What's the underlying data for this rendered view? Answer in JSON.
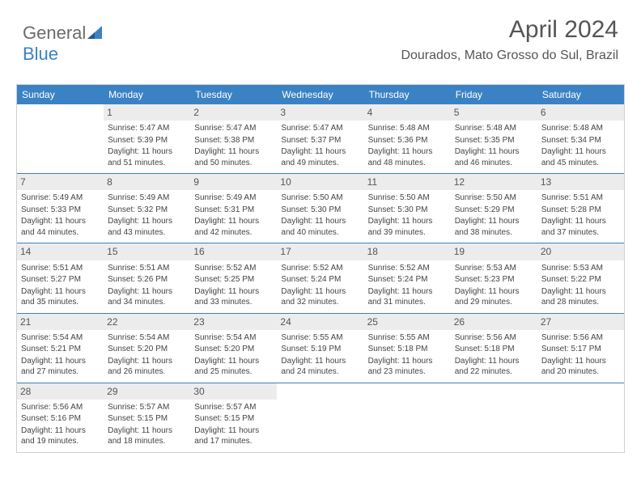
{
  "logo": {
    "text1": "General",
    "text2": "Blue"
  },
  "title": "April 2024",
  "location": "Dourados, Mato Grosso do Sul, Brazil",
  "colors": {
    "header_bg": "#3b82c4",
    "daynum_bg": "#ececec",
    "page_bg": "#ffffff",
    "text": "#444444"
  },
  "day_names": [
    "Sunday",
    "Monday",
    "Tuesday",
    "Wednesday",
    "Thursday",
    "Friday",
    "Saturday"
  ],
  "weeks": [
    [
      {
        "n": "",
        "sr": "",
        "ss": "",
        "dl": ""
      },
      {
        "n": "1",
        "sr": "Sunrise: 5:47 AM",
        "ss": "Sunset: 5:39 PM",
        "dl": "Daylight: 11 hours and 51 minutes."
      },
      {
        "n": "2",
        "sr": "Sunrise: 5:47 AM",
        "ss": "Sunset: 5:38 PM",
        "dl": "Daylight: 11 hours and 50 minutes."
      },
      {
        "n": "3",
        "sr": "Sunrise: 5:47 AM",
        "ss": "Sunset: 5:37 PM",
        "dl": "Daylight: 11 hours and 49 minutes."
      },
      {
        "n": "4",
        "sr": "Sunrise: 5:48 AM",
        "ss": "Sunset: 5:36 PM",
        "dl": "Daylight: 11 hours and 48 minutes."
      },
      {
        "n": "5",
        "sr": "Sunrise: 5:48 AM",
        "ss": "Sunset: 5:35 PM",
        "dl": "Daylight: 11 hours and 46 minutes."
      },
      {
        "n": "6",
        "sr": "Sunrise: 5:48 AM",
        "ss": "Sunset: 5:34 PM",
        "dl": "Daylight: 11 hours and 45 minutes."
      }
    ],
    [
      {
        "n": "7",
        "sr": "Sunrise: 5:49 AM",
        "ss": "Sunset: 5:33 PM",
        "dl": "Daylight: 11 hours and 44 minutes."
      },
      {
        "n": "8",
        "sr": "Sunrise: 5:49 AM",
        "ss": "Sunset: 5:32 PM",
        "dl": "Daylight: 11 hours and 43 minutes."
      },
      {
        "n": "9",
        "sr": "Sunrise: 5:49 AM",
        "ss": "Sunset: 5:31 PM",
        "dl": "Daylight: 11 hours and 42 minutes."
      },
      {
        "n": "10",
        "sr": "Sunrise: 5:50 AM",
        "ss": "Sunset: 5:30 PM",
        "dl": "Daylight: 11 hours and 40 minutes."
      },
      {
        "n": "11",
        "sr": "Sunrise: 5:50 AM",
        "ss": "Sunset: 5:30 PM",
        "dl": "Daylight: 11 hours and 39 minutes."
      },
      {
        "n": "12",
        "sr": "Sunrise: 5:50 AM",
        "ss": "Sunset: 5:29 PM",
        "dl": "Daylight: 11 hours and 38 minutes."
      },
      {
        "n": "13",
        "sr": "Sunrise: 5:51 AM",
        "ss": "Sunset: 5:28 PM",
        "dl": "Daylight: 11 hours and 37 minutes."
      }
    ],
    [
      {
        "n": "14",
        "sr": "Sunrise: 5:51 AM",
        "ss": "Sunset: 5:27 PM",
        "dl": "Daylight: 11 hours and 35 minutes."
      },
      {
        "n": "15",
        "sr": "Sunrise: 5:51 AM",
        "ss": "Sunset: 5:26 PM",
        "dl": "Daylight: 11 hours and 34 minutes."
      },
      {
        "n": "16",
        "sr": "Sunrise: 5:52 AM",
        "ss": "Sunset: 5:25 PM",
        "dl": "Daylight: 11 hours and 33 minutes."
      },
      {
        "n": "17",
        "sr": "Sunrise: 5:52 AM",
        "ss": "Sunset: 5:24 PM",
        "dl": "Daylight: 11 hours and 32 minutes."
      },
      {
        "n": "18",
        "sr": "Sunrise: 5:52 AM",
        "ss": "Sunset: 5:24 PM",
        "dl": "Daylight: 11 hours and 31 minutes."
      },
      {
        "n": "19",
        "sr": "Sunrise: 5:53 AM",
        "ss": "Sunset: 5:23 PM",
        "dl": "Daylight: 11 hours and 29 minutes."
      },
      {
        "n": "20",
        "sr": "Sunrise: 5:53 AM",
        "ss": "Sunset: 5:22 PM",
        "dl": "Daylight: 11 hours and 28 minutes."
      }
    ],
    [
      {
        "n": "21",
        "sr": "Sunrise: 5:54 AM",
        "ss": "Sunset: 5:21 PM",
        "dl": "Daylight: 11 hours and 27 minutes."
      },
      {
        "n": "22",
        "sr": "Sunrise: 5:54 AM",
        "ss": "Sunset: 5:20 PM",
        "dl": "Daylight: 11 hours and 26 minutes."
      },
      {
        "n": "23",
        "sr": "Sunrise: 5:54 AM",
        "ss": "Sunset: 5:20 PM",
        "dl": "Daylight: 11 hours and 25 minutes."
      },
      {
        "n": "24",
        "sr": "Sunrise: 5:55 AM",
        "ss": "Sunset: 5:19 PM",
        "dl": "Daylight: 11 hours and 24 minutes."
      },
      {
        "n": "25",
        "sr": "Sunrise: 5:55 AM",
        "ss": "Sunset: 5:18 PM",
        "dl": "Daylight: 11 hours and 23 minutes."
      },
      {
        "n": "26",
        "sr": "Sunrise: 5:56 AM",
        "ss": "Sunset: 5:18 PM",
        "dl": "Daylight: 11 hours and 22 minutes."
      },
      {
        "n": "27",
        "sr": "Sunrise: 5:56 AM",
        "ss": "Sunset: 5:17 PM",
        "dl": "Daylight: 11 hours and 20 minutes."
      }
    ],
    [
      {
        "n": "28",
        "sr": "Sunrise: 5:56 AM",
        "ss": "Sunset: 5:16 PM",
        "dl": "Daylight: 11 hours and 19 minutes."
      },
      {
        "n": "29",
        "sr": "Sunrise: 5:57 AM",
        "ss": "Sunset: 5:15 PM",
        "dl": "Daylight: 11 hours and 18 minutes."
      },
      {
        "n": "30",
        "sr": "Sunrise: 5:57 AM",
        "ss": "Sunset: 5:15 PM",
        "dl": "Daylight: 11 hours and 17 minutes."
      },
      {
        "n": "",
        "sr": "",
        "ss": "",
        "dl": ""
      },
      {
        "n": "",
        "sr": "",
        "ss": "",
        "dl": ""
      },
      {
        "n": "",
        "sr": "",
        "ss": "",
        "dl": ""
      },
      {
        "n": "",
        "sr": "",
        "ss": "",
        "dl": ""
      }
    ]
  ]
}
